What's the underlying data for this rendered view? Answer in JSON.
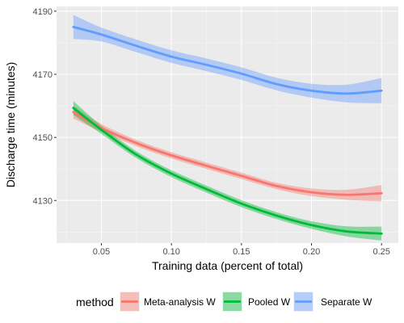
{
  "chart_data": {
    "type": "line",
    "xlabel": "Training data (percent of total)",
    "ylabel": "Discharge time (minutes)",
    "xlim": [
      0.018,
      0.262
    ],
    "ylim": [
      4116.5,
      4191.5
    ],
    "x_ticks": [
      0.05,
      0.1,
      0.15,
      0.2,
      0.25
    ],
    "x_tick_labels": [
      "0.05",
      "0.10",
      "0.15",
      "0.20",
      "0.25"
    ],
    "y_ticks": [
      4130,
      4150,
      4170,
      4190
    ],
    "y_tick_labels": [
      "4130",
      "4150",
      "4170",
      "4190"
    ],
    "background": "#ebebeb",
    "grid": true,
    "legend": {
      "title": "method",
      "position": "bottom"
    },
    "x": [
      0.03,
      0.05,
      0.075,
      0.1,
      0.125,
      0.15,
      0.175,
      0.2,
      0.225,
      0.25
    ],
    "series": [
      {
        "name": "Meta-analysis W",
        "color": "#f8766d",
        "values": [
          4158.0,
          4153.0,
          4148.2,
          4144.3,
          4141.0,
          4137.8,
          4134.6,
          4132.6,
          4131.8,
          4132.3
        ],
        "band": [
          2.0,
          1.2,
          1.0,
          1.0,
          1.0,
          1.0,
          1.0,
          1.2,
          1.6,
          2.6
        ]
      },
      {
        "name": "Pooled W",
        "color": "#00ba38",
        "values": [
          4159.3,
          4152.4,
          4144.5,
          4138.5,
          4133.6,
          4129.0,
          4125.2,
          4122.2,
          4120.2,
          4119.5
        ],
        "band": [
          2.2,
          1.3,
          1.1,
          1.1,
          1.1,
          1.1,
          1.1,
          1.2,
          1.6,
          2.2
        ]
      },
      {
        "name": "Separate W",
        "color": "#619cff",
        "values": [
          4185.0,
          4182.6,
          4179.0,
          4175.6,
          4173.0,
          4170.2,
          4166.9,
          4164.8,
          4163.9,
          4164.8
        ],
        "band": [
          3.8,
          2.2,
          2.0,
          2.0,
          2.0,
          2.0,
          2.0,
          2.2,
          2.8,
          4.0
        ]
      }
    ]
  }
}
